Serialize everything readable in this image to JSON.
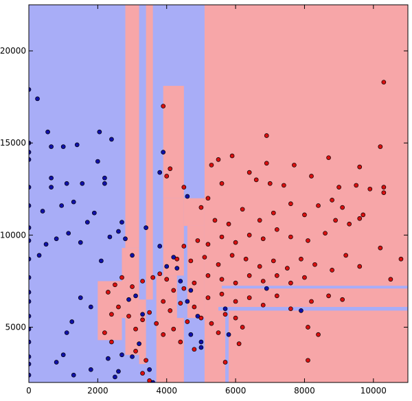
{
  "chart_data": {
    "type": "scatter",
    "title": "",
    "xlabel": "",
    "ylabel": "",
    "xlim": [
      0,
      11000
    ],
    "ylim": [
      2000,
      22500
    ],
    "xticks": [
      "0",
      "2000",
      "4000",
      "6000",
      "8000",
      "10000"
    ],
    "yticks": [
      "5000",
      "10000",
      "15000",
      "20000"
    ],
    "grid": false,
    "legend": "none",
    "colors": {
      "region_blue": "#a8adf7",
      "region_red": "#f7a6a8",
      "point_blue": "#1010a8",
      "point_red": "#d80f0f",
      "point_edge": "#000000"
    },
    "decision_regions": [
      {
        "class": "red",
        "x": [
          0,
          11000
        ],
        "y": [
          2000,
          22500
        ]
      },
      {
        "class": "blue",
        "x": [
          0,
          5100
        ],
        "y": [
          2000,
          22500
        ]
      },
      {
        "class": "red",
        "x": [
          2800,
          3200
        ],
        "y": [
          9300,
          22500
        ]
      },
      {
        "class": "red",
        "x": [
          3400,
          3600
        ],
        "y": [
          6500,
          22500
        ]
      },
      {
        "class": "red",
        "x": [
          3900,
          4500
        ],
        "y": [
          12000,
          18100
        ]
      },
      {
        "class": "red",
        "x": [
          3900,
          4500
        ],
        "y": [
          7800,
          12000
        ]
      },
      {
        "class": "red",
        "x": [
          4500,
          5100
        ],
        "y": [
          10500,
          12000
        ]
      },
      {
        "class": "red",
        "x": [
          4600,
          5100
        ],
        "y": [
          5500,
          10500
        ]
      },
      {
        "class": "red",
        "x": [
          2700,
          2800
        ],
        "y": [
          5500,
          9300
        ]
      },
      {
        "class": "red",
        "x": [
          2800,
          3200
        ],
        "y": [
          3500,
          9300
        ]
      },
      {
        "class": "red",
        "x": [
          3200,
          3400
        ],
        "y": [
          3000,
          6500
        ]
      },
      {
        "class": "red",
        "x": [
          3700,
          4500
        ],
        "y": [
          2000,
          7800
        ]
      },
      {
        "class": "red",
        "x": [
          2000,
          2700
        ],
        "y": [
          4300,
          7500
        ]
      },
      {
        "class": "blue",
        "x": [
          4300,
          4500
        ],
        "y": [
          5500,
          7800
        ]
      },
      {
        "class": "blue",
        "x": [
          5500,
          11000
        ],
        "y": [
          5900,
          6100
        ]
      },
      {
        "class": "blue",
        "x": [
          5600,
          11000
        ],
        "y": [
          7100,
          7250
        ]
      },
      {
        "class": "blue",
        "x": [
          5700,
          5800
        ],
        "y": [
          2000,
          6000
        ]
      },
      {
        "class": "blue",
        "x": [
          0,
          2000
        ],
        "y": [
          11850,
          12000
        ]
      }
    ],
    "series": [
      {
        "class": "blue",
        "points": [
          [
            0,
            2400
          ],
          [
            0,
            3000
          ],
          [
            0,
            3400
          ],
          [
            0,
            4200
          ],
          [
            0,
            4900
          ],
          [
            0,
            5600
          ],
          [
            0,
            6400
          ],
          [
            0,
            6900
          ],
          [
            0,
            7700
          ],
          [
            0,
            8700
          ],
          [
            0,
            9700
          ],
          [
            0,
            10400
          ],
          [
            0,
            11600
          ],
          [
            0,
            12600
          ],
          [
            0,
            14100
          ],
          [
            0,
            14500
          ],
          [
            0,
            15000
          ],
          [
            0,
            17900
          ],
          [
            250,
            17400
          ],
          [
            550,
            15600
          ],
          [
            650,
            14800
          ],
          [
            1000,
            14800
          ],
          [
            1400,
            14900
          ],
          [
            650,
            13100
          ],
          [
            1100,
            12800
          ],
          [
            1550,
            12800
          ],
          [
            650,
            12600
          ],
          [
            2200,
            12800
          ],
          [
            2200,
            13100
          ],
          [
            2400,
            15200
          ],
          [
            2050,
            15600
          ],
          [
            2000,
            14000
          ],
          [
            400,
            11300
          ],
          [
            950,
            11600
          ],
          [
            1300,
            11800
          ],
          [
            1900,
            11200
          ],
          [
            1150,
            10100
          ],
          [
            1700,
            10700
          ],
          [
            2350,
            9900
          ],
          [
            300,
            8900
          ],
          [
            500,
            9500
          ],
          [
            800,
            9800
          ],
          [
            1500,
            9600
          ],
          [
            2600,
            10200
          ],
          [
            2100,
            8600
          ],
          [
            2700,
            10700
          ],
          [
            2800,
            9800
          ],
          [
            3400,
            10400
          ],
          [
            3000,
            8900
          ],
          [
            3800,
            9400
          ],
          [
            4000,
            8300
          ],
          [
            4200,
            8800
          ],
          [
            4600,
            12100
          ],
          [
            3900,
            14500
          ],
          [
            3800,
            13400
          ],
          [
            4300,
            8200
          ],
          [
            4400,
            7500
          ],
          [
            4700,
            7000
          ],
          [
            4600,
            6400
          ],
          [
            4900,
            5600
          ],
          [
            4700,
            4600
          ],
          [
            5000,
            4200
          ],
          [
            5000,
            3900
          ],
          [
            3100,
            6700
          ],
          [
            2900,
            6500
          ],
          [
            3300,
            5700
          ],
          [
            3200,
            4100
          ],
          [
            3000,
            3400
          ],
          [
            3500,
            2700
          ],
          [
            3600,
            2000
          ],
          [
            2600,
            2600
          ],
          [
            2500,
            2300
          ],
          [
            2700,
            3500
          ],
          [
            2300,
            3300
          ],
          [
            1800,
            2700
          ],
          [
            1300,
            2400
          ],
          [
            800,
            3100
          ],
          [
            1000,
            3500
          ],
          [
            5700,
            6000
          ],
          [
            5800,
            4600
          ],
          [
            7900,
            5900
          ],
          [
            6900,
            7100
          ],
          [
            1250,
            5300
          ],
          [
            1800,
            6100
          ],
          [
            1100,
            4700
          ],
          [
            1500,
            6600
          ]
        ]
      },
      {
        "class": "red",
        "points": [
          [
            3900,
            17000
          ],
          [
            4100,
            13600
          ],
          [
            4000,
            13200
          ],
          [
            4500,
            12600
          ],
          [
            5300,
            13800
          ],
          [
            5500,
            14100
          ],
          [
            5900,
            14300
          ],
          [
            6400,
            13400
          ],
          [
            6600,
            13000
          ],
          [
            6900,
            13900
          ],
          [
            7000,
            12800
          ],
          [
            7400,
            12700
          ],
          [
            7700,
            13800
          ],
          [
            8200,
            13200
          ],
          [
            8700,
            14200
          ],
          [
            9600,
            13700
          ],
          [
            10200,
            14800
          ],
          [
            10300,
            18300
          ],
          [
            10300,
            12600
          ],
          [
            10300,
            12300
          ],
          [
            9900,
            12500
          ],
          [
            9500,
            12700
          ],
          [
            9000,
            12600
          ],
          [
            8800,
            11900
          ],
          [
            9100,
            11500
          ],
          [
            9700,
            11100
          ],
          [
            6900,
            15400
          ],
          [
            5600,
            12800
          ],
          [
            5200,
            12000
          ],
          [
            5000,
            11500
          ],
          [
            5400,
            10800
          ],
          [
            5800,
            10600
          ],
          [
            6200,
            11400
          ],
          [
            6700,
            10800
          ],
          [
            7100,
            11200
          ],
          [
            7600,
            11700
          ],
          [
            8000,
            11100
          ],
          [
            8400,
            11600
          ],
          [
            8900,
            10800
          ],
          [
            9300,
            10600
          ],
          [
            8600,
            10100
          ],
          [
            8100,
            9700
          ],
          [
            7600,
            9900
          ],
          [
            7200,
            10300
          ],
          [
            6800,
            9800
          ],
          [
            6400,
            10000
          ],
          [
            6000,
            9600
          ],
          [
            5600,
            9900
          ],
          [
            5200,
            9500
          ],
          [
            4900,
            9700
          ],
          [
            4500,
            9400
          ],
          [
            4300,
            8700
          ],
          [
            4700,
            8600
          ],
          [
            5100,
            8800
          ],
          [
            5500,
            8400
          ],
          [
            5900,
            8900
          ],
          [
            6300,
            8700
          ],
          [
            6700,
            8300
          ],
          [
            7100,
            8600
          ],
          [
            7500,
            8200
          ],
          [
            7900,
            8700
          ],
          [
            8300,
            8400
          ],
          [
            8800,
            8100
          ],
          [
            9200,
            8900
          ],
          [
            9600,
            8300
          ],
          [
            10200,
            9300
          ],
          [
            10800,
            8700
          ],
          [
            10500,
            7600
          ],
          [
            9600,
            10900
          ],
          [
            8000,
            7700
          ],
          [
            7600,
            7400
          ],
          [
            7200,
            7800
          ],
          [
            6800,
            7500
          ],
          [
            6400,
            7800
          ],
          [
            6000,
            7400
          ],
          [
            5600,
            7600
          ],
          [
            5200,
            7800
          ],
          [
            4800,
            7400
          ],
          [
            4500,
            7100
          ],
          [
            4200,
            7000
          ],
          [
            3900,
            6400
          ],
          [
            4100,
            5900
          ],
          [
            4400,
            6300
          ],
          [
            4800,
            6100
          ],
          [
            5200,
            6600
          ],
          [
            5600,
            6800
          ],
          [
            6000,
            6400
          ],
          [
            6400,
            6600
          ],
          [
            6800,
            6200
          ],
          [
            7200,
            6700
          ],
          [
            7600,
            6000
          ],
          [
            8200,
            6400
          ],
          [
            8700,
            6700
          ],
          [
            9100,
            6500
          ],
          [
            8400,
            4600
          ],
          [
            8100,
            3200
          ],
          [
            8100,
            5000
          ],
          [
            6200,
            5000
          ],
          [
            6000,
            5500
          ],
          [
            5700,
            5700
          ],
          [
            5500,
            4700
          ],
          [
            5300,
            5200
          ],
          [
            5000,
            5500
          ],
          [
            4600,
            5300
          ],
          [
            4200,
            4900
          ],
          [
            3900,
            4600
          ],
          [
            3700,
            5200
          ],
          [
            3500,
            5800
          ],
          [
            3300,
            5400
          ],
          [
            3100,
            4900
          ],
          [
            2900,
            5600
          ],
          [
            2600,
            6100
          ],
          [
            2400,
            5700
          ],
          [
            2300,
            6900
          ],
          [
            2500,
            7300
          ],
          [
            2700,
            7700
          ],
          [
            3000,
            7200
          ],
          [
            3300,
            7500
          ],
          [
            3600,
            7700
          ],
          [
            3800,
            7900
          ],
          [
            4000,
            7600
          ],
          [
            2200,
            4700
          ],
          [
            2400,
            4200
          ],
          [
            3100,
            3700
          ],
          [
            3400,
            3200
          ],
          [
            3300,
            2500
          ],
          [
            3500,
            2100
          ],
          [
            4400,
            4200
          ],
          [
            4800,
            3800
          ],
          [
            5700,
            3100
          ],
          [
            6100,
            4100
          ]
        ]
      }
    ]
  }
}
